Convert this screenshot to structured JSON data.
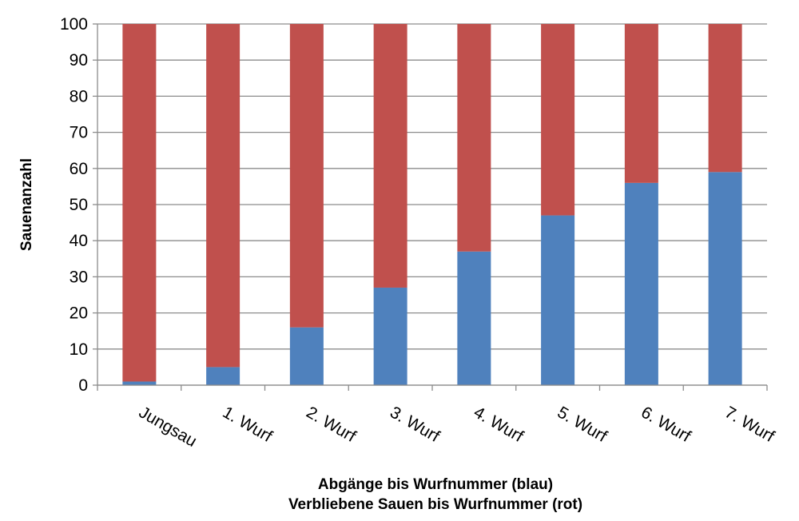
{
  "chart_data": {
    "type": "bar",
    "stacked": true,
    "categories": [
      "Jungsau",
      "1.  Wurf",
      "2.  Wurf",
      "3.  Wurf",
      "4.  Wurf",
      "5.  Wurf",
      "6.  Wurf",
      "7.  Wurf"
    ],
    "series": [
      {
        "values": [
          1,
          5,
          16,
          27,
          37,
          47,
          56,
          59
        ],
        "color": "#4f81bd"
      },
      {
        "values": [
          99,
          95,
          84,
          73,
          63,
          53,
          44,
          41
        ],
        "color": "#c0504d"
      }
    ],
    "ylabel": "Sauenanzahl",
    "xlabel_line1": "Abgänge bis Wurfnummer (blau)",
    "xlabel_line2": "Verbliebene Sauen bis Wurfnummer (rot)",
    "ylim": [
      0,
      100
    ],
    "yticks": [
      0,
      10,
      20,
      30,
      40,
      50,
      60,
      70,
      80,
      90,
      100
    ],
    "grid": true,
    "legend": "none"
  }
}
